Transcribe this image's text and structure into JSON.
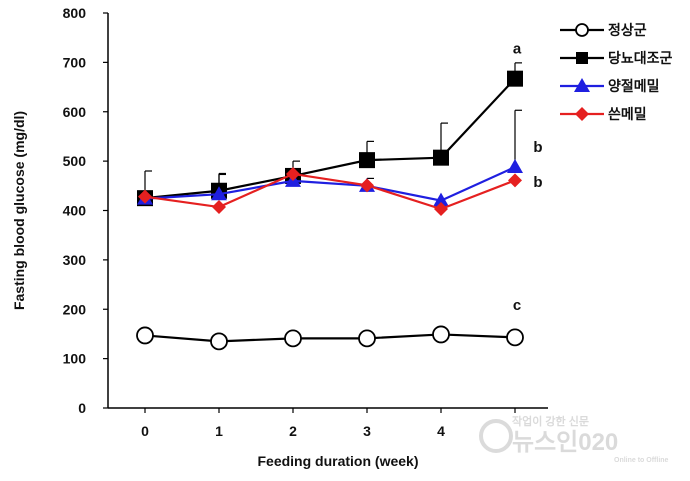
{
  "chart_data": {
    "type": "line",
    "title": "",
    "xlabel": "Feeding duration  (week)",
    "ylabel": "Fasting blood glucose  (mg/dl)",
    "x": [
      0,
      1,
      2,
      3,
      4,
      5
    ],
    "x_tick_labels": [
      "0",
      "1",
      "2",
      "3",
      "4",
      ""
    ],
    "ylim": [
      0,
      800
    ],
    "y_ticks": [
      0,
      100,
      200,
      300,
      400,
      500,
      600,
      700,
      800
    ],
    "grid": false,
    "legend_position": "top-right",
    "series": [
      {
        "name": "정상군",
        "color": "#000000",
        "marker": "circle-open",
        "values": [
          147,
          135,
          141,
          141,
          149,
          143
        ],
        "error": [
          0,
          0,
          0,
          0,
          0,
          0
        ]
      },
      {
        "name": "당뇨대조군",
        "color": "#000000",
        "marker": "square-filled",
        "values": [
          425,
          440,
          470,
          502,
          507,
          667
        ],
        "error": [
          55,
          35,
          30,
          38,
          70,
          32
        ]
      },
      {
        "name": "양절메밀",
        "color": "#1f1fe0",
        "marker": "triangle-filled",
        "values": [
          424,
          433,
          460,
          450,
          420,
          488
        ],
        "error": [
          0,
          40,
          20,
          15,
          0,
          115
        ]
      },
      {
        "name": "쓴메밀",
        "color": "#e52020",
        "marker": "diamond-filled",
        "values": [
          428,
          407,
          474,
          451,
          403,
          461
        ],
        "error": [
          0,
          0,
          0,
          0,
          0,
          0
        ]
      }
    ],
    "annotations": [
      {
        "text": "a",
        "x": 5,
        "y": 718
      },
      {
        "text": "b",
        "x": 5,
        "y": 518
      },
      {
        "text": "b",
        "x": 5,
        "y": 448
      },
      {
        "text": "c",
        "x": 5,
        "y": 198
      }
    ]
  },
  "watermark": {
    "tagline": "작업이 강한 신문",
    "brand": "뉴스인020",
    "sub": "Online to Offline"
  }
}
